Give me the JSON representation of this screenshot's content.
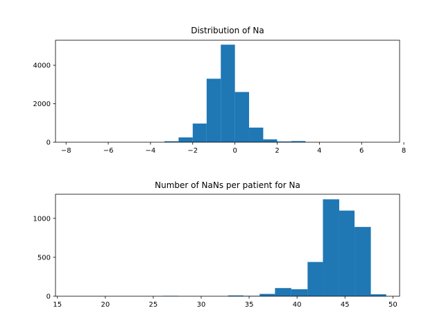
{
  "chart_data": [
    {
      "type": "bar",
      "title": "Distribution of Na",
      "bar_color": "#1f77b4",
      "xlim": [
        -8.5,
        7.8
      ],
      "ylim": [
        0,
        5300
      ],
      "xticks": [
        -8,
        -6,
        -4,
        -2,
        0,
        2,
        4,
        6,
        8
      ],
      "yticks": [
        0,
        2000,
        4000
      ],
      "bins": [
        {
          "x0": -3.34,
          "x1": -2.67,
          "value": 50
        },
        {
          "x0": -2.67,
          "x1": -2.0,
          "value": 250
        },
        {
          "x0": -2.0,
          "x1": -1.34,
          "value": 970
        },
        {
          "x0": -1.34,
          "x1": -0.67,
          "value": 3300
        },
        {
          "x0": -0.67,
          "x1": 0.0,
          "value": 5070
        },
        {
          "x0": 0.0,
          "x1": 0.67,
          "value": 2610
        },
        {
          "x0": 0.67,
          "x1": 1.34,
          "value": 760
        },
        {
          "x0": 1.34,
          "x1": 2.0,
          "value": 150
        },
        {
          "x0": 2.0,
          "x1": 2.67,
          "value": 40
        },
        {
          "x0": 2.67,
          "x1": 3.34,
          "value": 60
        }
      ]
    },
    {
      "type": "bar",
      "title": "Number of NaNs per patient for Na",
      "bar_color": "#1f77b4",
      "xlim": [
        14.8,
        50.7
      ],
      "ylim": [
        0,
        1310
      ],
      "xticks": [
        15,
        20,
        25,
        30,
        35,
        40,
        45,
        50
      ],
      "yticks": [
        0,
        500,
        1000
      ],
      "bins": [
        {
          "x0": 26.0,
          "x1": 27.6,
          "value": 5
        },
        {
          "x0": 32.8,
          "x1": 34.4,
          "value": 10
        },
        {
          "x0": 34.4,
          "x1": 36.1,
          "value": 5
        },
        {
          "x0": 36.1,
          "x1": 37.7,
          "value": 30
        },
        {
          "x0": 37.7,
          "x1": 39.4,
          "value": 105
        },
        {
          "x0": 39.4,
          "x1": 41.1,
          "value": 90
        },
        {
          "x0": 41.1,
          "x1": 42.7,
          "value": 440
        },
        {
          "x0": 42.7,
          "x1": 44.4,
          "value": 1245
        },
        {
          "x0": 44.4,
          "x1": 46.0,
          "value": 1100
        },
        {
          "x0": 46.0,
          "x1": 47.7,
          "value": 890
        },
        {
          "x0": 47.7,
          "x1": 49.3,
          "value": 25
        }
      ]
    }
  ]
}
